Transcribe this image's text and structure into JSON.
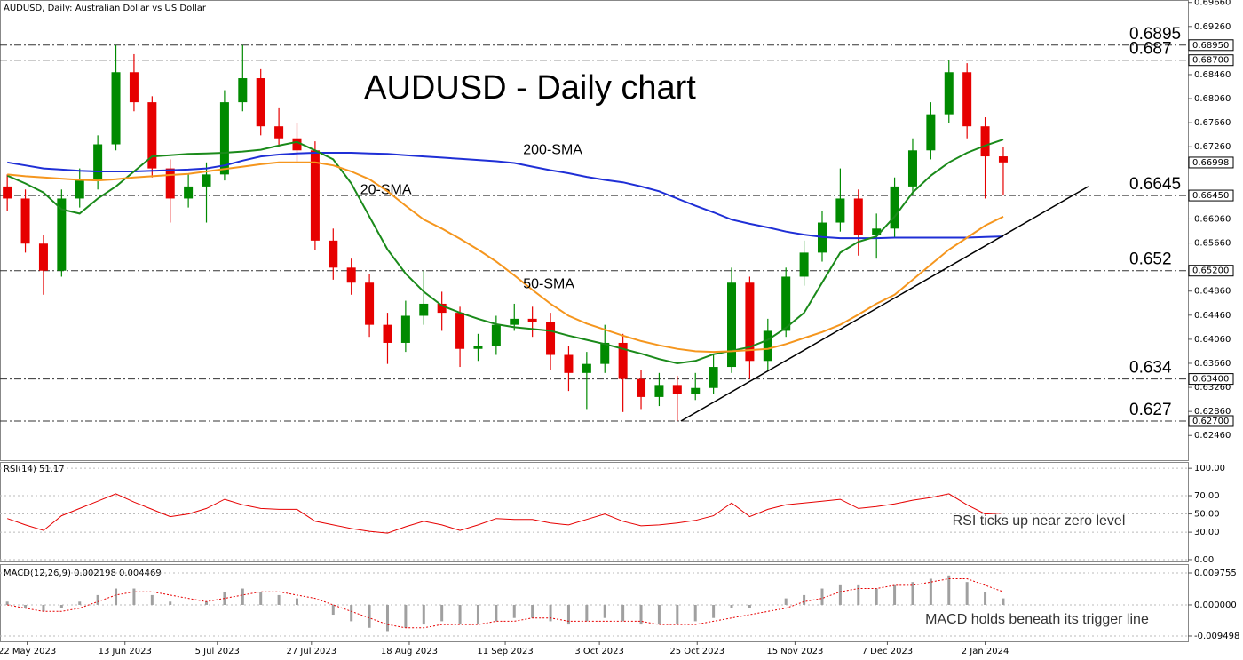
{
  "chart_data": [
    {
      "type": "candlestick",
      "header": "AUDUSD, Daily:  Australian Dollar vs US Dollar",
      "title": "AUDUSD - Daily chart",
      "x": [
        0,
        1,
        2,
        3,
        4,
        5,
        6,
        7,
        8,
        9,
        10,
        11,
        12,
        13,
        14,
        15,
        16,
        17,
        18,
        19,
        20,
        21,
        22,
        23,
        24,
        25,
        26,
        27,
        28,
        29,
        30,
        31,
        32,
        33,
        34,
        35,
        36,
        37,
        38,
        39,
        40,
        41,
        42,
        43,
        44,
        45,
        46,
        47,
        48,
        49,
        50,
        51,
        52,
        53,
        54,
        55
      ],
      "open": [
        0.666,
        0.664,
        0.6565,
        0.652,
        0.664,
        0.667,
        0.673,
        0.685,
        0.68,
        0.669,
        0.664,
        0.666,
        0.668,
        0.68,
        0.684,
        0.676,
        0.674,
        0.672,
        0.657,
        0.6525,
        0.65,
        0.643,
        0.64,
        0.6445,
        0.6465,
        0.645,
        0.639,
        0.6395,
        0.643,
        0.644,
        0.6435,
        0.638,
        0.635,
        0.6365,
        0.64,
        0.634,
        0.631,
        0.633,
        0.6315,
        0.6325,
        0.636,
        0.65,
        0.637,
        0.642,
        0.651,
        0.655,
        0.66,
        0.664,
        0.658,
        0.659,
        0.666,
        0.672,
        0.678,
        0.685,
        0.676,
        0.671
      ],
      "high": [
        0.668,
        0.6655,
        0.658,
        0.6655,
        0.669,
        0.6745,
        0.6895,
        0.688,
        0.681,
        0.6705,
        0.668,
        0.67,
        0.682,
        0.6895,
        0.6855,
        0.679,
        0.6765,
        0.6735,
        0.659,
        0.654,
        0.6515,
        0.645,
        0.647,
        0.652,
        0.6485,
        0.646,
        0.6415,
        0.6445,
        0.6465,
        0.646,
        0.645,
        0.6395,
        0.6385,
        0.643,
        0.6415,
        0.6355,
        0.635,
        0.6345,
        0.635,
        0.638,
        0.6525,
        0.651,
        0.644,
        0.6525,
        0.657,
        0.662,
        0.669,
        0.6655,
        0.6615,
        0.6675,
        0.674,
        0.68,
        0.687,
        0.6865,
        0.6775,
        0.6725
      ],
      "low": [
        0.662,
        0.655,
        0.648,
        0.651,
        0.6625,
        0.6655,
        0.672,
        0.6785,
        0.6675,
        0.66,
        0.6625,
        0.66,
        0.667,
        0.6785,
        0.6745,
        0.6725,
        0.67,
        0.6555,
        0.6505,
        0.648,
        0.641,
        0.6365,
        0.6385,
        0.643,
        0.642,
        0.636,
        0.637,
        0.638,
        0.642,
        0.641,
        0.6355,
        0.632,
        0.629,
        0.635,
        0.6285,
        0.629,
        0.6295,
        0.627,
        0.6305,
        0.6315,
        0.635,
        0.634,
        0.6355,
        0.641,
        0.6495,
        0.6535,
        0.6585,
        0.6545,
        0.654,
        0.6575,
        0.6645,
        0.6705,
        0.6765,
        0.674,
        0.664,
        0.6645
      ],
      "close": [
        0.664,
        0.6565,
        0.652,
        0.664,
        0.667,
        0.673,
        0.685,
        0.68,
        0.669,
        0.664,
        0.666,
        0.668,
        0.68,
        0.684,
        0.676,
        0.674,
        0.672,
        0.657,
        0.6525,
        0.65,
        0.643,
        0.64,
        0.6445,
        0.6465,
        0.645,
        0.639,
        0.6395,
        0.643,
        0.644,
        0.6435,
        0.638,
        0.635,
        0.6365,
        0.64,
        0.634,
        0.631,
        0.633,
        0.6315,
        0.6325,
        0.636,
        0.65,
        0.637,
        0.642,
        0.651,
        0.655,
        0.66,
        0.664,
        0.658,
        0.659,
        0.666,
        0.672,
        0.678,
        0.685,
        0.676,
        0.671,
        0.67
      ],
      "up_color": "#008a00",
      "down_color": "#e60000",
      "series": [
        {
          "name": "200-SMA",
          "color": "#1f2fd6",
          "values": [
            0.67,
            0.6695,
            0.669,
            0.6688,
            0.6686,
            0.6685,
            0.6685,
            0.6685,
            0.6686,
            0.6687,
            0.6688,
            0.669,
            0.6695,
            0.6703,
            0.671,
            0.6713,
            0.6715,
            0.6716,
            0.6716,
            0.6716,
            0.6715,
            0.6714,
            0.6712,
            0.671,
            0.6708,
            0.6706,
            0.6704,
            0.6702,
            0.6699,
            0.6693,
            0.6687,
            0.6682,
            0.6676,
            0.6671,
            0.6667,
            0.666,
            0.6652,
            0.664,
            0.6628,
            0.6617,
            0.6605,
            0.6598,
            0.6592,
            0.6585,
            0.658,
            0.6576,
            0.6574,
            0.6574,
            0.6574,
            0.6575,
            0.6575,
            0.6575,
            0.6575,
            0.6575,
            0.6576,
            0.6577
          ]
        },
        {
          "name": "20-SMA",
          "color": "#1a8a1a",
          "values": [
            0.6678,
            0.6665,
            0.665,
            0.6622,
            0.6615,
            0.664,
            0.666,
            0.6685,
            0.671,
            0.6712,
            0.6714,
            0.6715,
            0.6716,
            0.6718,
            0.6721,
            0.6728,
            0.6734,
            0.672,
            0.6705,
            0.6665,
            0.661,
            0.6555,
            0.6515,
            0.6485,
            0.6462,
            0.645,
            0.644,
            0.6431,
            0.6426,
            0.6423,
            0.642,
            0.6412,
            0.6405,
            0.6398,
            0.639,
            0.6382,
            0.6373,
            0.6366,
            0.637,
            0.6381,
            0.6387,
            0.6393,
            0.6405,
            0.6425,
            0.645,
            0.65,
            0.655,
            0.6568,
            0.6577,
            0.661,
            0.665,
            0.6678,
            0.67,
            0.6716,
            0.6728,
            0.6738
          ]
        },
        {
          "name": "50-SMA",
          "color": "#f5961e",
          "values": [
            0.668,
            0.6677,
            0.6675,
            0.6673,
            0.6671,
            0.667,
            0.6672,
            0.6675,
            0.6677,
            0.6679,
            0.6681,
            0.6685,
            0.6689,
            0.6693,
            0.6697,
            0.67,
            0.67,
            0.67,
            0.6695,
            0.6685,
            0.6672,
            0.6652,
            0.6628,
            0.6605,
            0.659,
            0.6573,
            0.6555,
            0.6535,
            0.6512,
            0.6488,
            0.6465,
            0.6445,
            0.6432,
            0.6422,
            0.6412,
            0.6403,
            0.6396,
            0.639,
            0.6386,
            0.6385,
            0.6386,
            0.6388,
            0.639,
            0.6398,
            0.6408,
            0.6418,
            0.643,
            0.6447,
            0.6465,
            0.648,
            0.6505,
            0.653,
            0.6555,
            0.6575,
            0.6595,
            0.661
          ]
        }
      ],
      "trendline": {
        "color": "#000000",
        "x": [
          37.2,
          59.7
        ],
        "values": [
          0.627,
          0.666
        ]
      },
      "levels": [
        0.6895,
        0.687,
        0.6645,
        0.652,
        0.634,
        0.627
      ],
      "level_colors": [
        "#ff0000",
        "#ff0000",
        "#1a8a1a",
        "#1a8a1a",
        "#1a8a1a",
        "#1a8a1a"
      ],
      "price_markers": [
        {
          "value": 0.6895,
          "label": "0.68950"
        },
        {
          "value": 0.687,
          "label": "0.68700"
        },
        {
          "value": 0.6645,
          "label": "0.66450"
        },
        {
          "value": 0.652,
          "label": "0.65200"
        },
        {
          "value": 0.634,
          "label": "0.63400"
        },
        {
          "value": 0.627,
          "label": "0.62700"
        }
      ],
      "last_price": 0.66998,
      "xlim": [
        -0.4,
        65.2
      ],
      "xticks": [
        {
          "value": 1.1,
          "label": "22 May 2023"
        },
        {
          "value": 6.5,
          "label": "13 Jun 2023"
        },
        {
          "value": 11.6,
          "label": "5 Jul 2023"
        },
        {
          "value": 16.8,
          "label": "27 Jul 2023"
        },
        {
          "value": 22.2,
          "label": "18 Aug 2023"
        },
        {
          "value": 27.5,
          "label": "11 Sep 2023"
        },
        {
          "value": 32.7,
          "label": "3 Oct 2023"
        },
        {
          "value": 38.1,
          "label": "25 Oct 2023"
        },
        {
          "value": 43.5,
          "label": "15 Nov 2023"
        },
        {
          "value": 48.6,
          "label": "7 Dec 2023"
        },
        {
          "value": 54.0,
          "label": "2 Jan 2024"
        }
      ],
      "ylim": [
        0.6205,
        0.697
      ],
      "yticks": [
        {
          "value": 0.6966,
          "label": "0.69660"
        },
        {
          "value": 0.6926,
          "label": "0.69260"
        },
        {
          "value": 0.6846,
          "label": "0.68460"
        },
        {
          "value": 0.6806,
          "label": "0.68060"
        },
        {
          "value": 0.6766,
          "label": "0.67660"
        },
        {
          "value": 0.6726,
          "label": "0.67260"
        },
        {
          "value": 0.6606,
          "label": "0.66060"
        },
        {
          "value": 0.6566,
          "label": "0.65660"
        },
        {
          "value": 0.6486,
          "label": "0.64860"
        },
        {
          "value": 0.6446,
          "label": "0.64460"
        },
        {
          "value": 0.6406,
          "label": "0.64060"
        },
        {
          "value": 0.6366,
          "label": "0.63660"
        },
        {
          "value": 0.6326,
          "label": "0.63260"
        },
        {
          "value": 0.6286,
          "label": "0.62860"
        },
        {
          "value": 0.6246,
          "label": "0.62460"
        }
      ]
    },
    {
      "type": "line",
      "header": "RSI(14) 51.17",
      "annotation": "RSI ticks up near zero level",
      "x": [
        0,
        1,
        2,
        3,
        4,
        5,
        6,
        7,
        8,
        9,
        10,
        11,
        12,
        13,
        14,
        15,
        16,
        17,
        18,
        19,
        20,
        21,
        22,
        23,
        24,
        25,
        26,
        27,
        28,
        29,
        30,
        31,
        32,
        33,
        34,
        35,
        36,
        37,
        38,
        39,
        40,
        41,
        42,
        43,
        44,
        45,
        46,
        47,
        48,
        49,
        50,
        51,
        52,
        53,
        54,
        55
      ],
      "series": [
        {
          "name": "RSI(14)",
          "color": "#e60000",
          "values": [
            45,
            38,
            32,
            48,
            56,
            64,
            72,
            63,
            55,
            47,
            50,
            56,
            66,
            60,
            56,
            55,
            55,
            42,
            38,
            34,
            31,
            29,
            36,
            42,
            38,
            32,
            38,
            45,
            44,
            44,
            40,
            38,
            44,
            50,
            42,
            37,
            38,
            40,
            43,
            48,
            62,
            47,
            55,
            60,
            62,
            64,
            66,
            56,
            58,
            61,
            65,
            68,
            72,
            60,
            50,
            51
          ]
        }
      ],
      "xlim": [
        -0.4,
        65.2
      ],
      "ylim": [
        -2,
        106
      ],
      "yticks": [
        {
          "value": 100,
          "label": "100.00"
        },
        {
          "value": 70,
          "label": "70.00"
        },
        {
          "value": 50,
          "label": "50.00"
        },
        {
          "value": 30,
          "label": "30.00"
        },
        {
          "value": 0,
          "label": "0.00"
        }
      ]
    },
    {
      "type": "macd",
      "header": "MACD(12,26,9) 0.002198 0.004469",
      "annotation": "MACD holds beneath its trigger line",
      "x": [
        0,
        1,
        2,
        3,
        4,
        5,
        6,
        7,
        8,
        9,
        10,
        11,
        12,
        13,
        14,
        15,
        16,
        17,
        18,
        19,
        20,
        21,
        22,
        23,
        24,
        25,
        26,
        27,
        28,
        29,
        30,
        31,
        32,
        33,
        34,
        35,
        36,
        37,
        38,
        39,
        40,
        41,
        42,
        43,
        44,
        45,
        46,
        47,
        48,
        49,
        50,
        51,
        52,
        53,
        54,
        55
      ],
      "histogram": {
        "color": "#a0a0a0",
        "values": [
          0.001,
          -0.001,
          -0.002,
          -0.001,
          0.001,
          0.003,
          0.005,
          0.005,
          0.003,
          0.001,
          0.0,
          0.001,
          0.004,
          0.005,
          0.004,
          0.003,
          0.002,
          0.0,
          -0.003,
          -0.005,
          -0.007,
          -0.008,
          -0.007,
          -0.006,
          -0.005,
          -0.006,
          -0.006,
          -0.005,
          -0.004,
          -0.004,
          -0.005,
          -0.006,
          -0.005,
          -0.004,
          -0.005,
          -0.006,
          -0.006,
          -0.006,
          -0.005,
          -0.004,
          -0.001,
          -0.001,
          0.0,
          0.002,
          0.003,
          0.005,
          0.006,
          0.006,
          0.005,
          0.006,
          0.007,
          0.008,
          0.009,
          0.007,
          0.004,
          0.002
        ]
      },
      "signal": {
        "color": "#e60000",
        "values": [
          0.0,
          -0.001,
          -0.002,
          -0.002,
          -0.001,
          0.001,
          0.003,
          0.004,
          0.004,
          0.003,
          0.002,
          0.001,
          0.002,
          0.003,
          0.004,
          0.004,
          0.003,
          0.002,
          0.0,
          -0.002,
          -0.004,
          -0.006,
          -0.007,
          -0.007,
          -0.006,
          -0.006,
          -0.006,
          -0.005,
          -0.005,
          -0.004,
          -0.004,
          -0.005,
          -0.005,
          -0.005,
          -0.005,
          -0.005,
          -0.006,
          -0.006,
          -0.006,
          -0.005,
          -0.004,
          -0.003,
          -0.002,
          -0.001,
          0.001,
          0.002,
          0.004,
          0.005,
          0.005,
          0.006,
          0.006,
          0.007,
          0.008,
          0.008,
          0.006,
          0.004
        ]
      },
      "xlim": [
        -0.4,
        65.2
      ],
      "ylim": [
        -0.01113,
        0.0122
      ],
      "yticks": [
        0.009755,
        {
          "value": 0,
          "label": "0.000000"
        },
        -0.009498
      ]
    }
  ]
}
